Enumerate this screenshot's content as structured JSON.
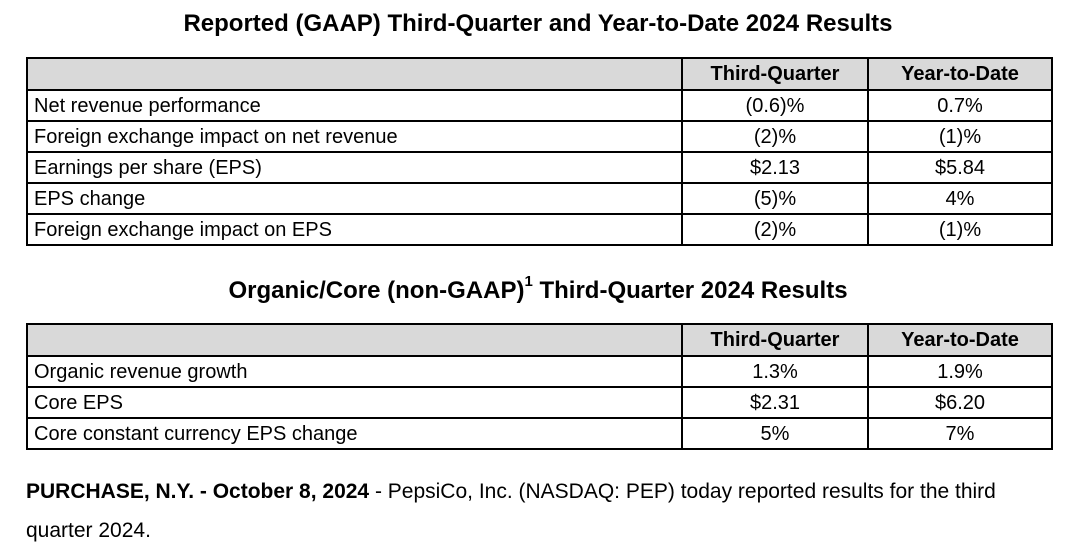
{
  "section1": {
    "title": "Reported (GAAP) Third-Quarter and Year-to-Date 2024 Results",
    "columns": [
      "",
      "Third-Quarter",
      "Year-to-Date"
    ],
    "rows": [
      [
        "Net revenue performance",
        "(0.6)%",
        "0.7%"
      ],
      [
        "Foreign exchange impact on net revenue",
        "(2)%",
        "(1)%"
      ],
      [
        "Earnings per share (EPS)",
        "$2.13",
        "$5.84"
      ],
      [
        "EPS change",
        "(5)%",
        "4%"
      ],
      [
        "Foreign exchange impact on EPS",
        "(2)%",
        "(1)%"
      ]
    ]
  },
  "section2": {
    "title_main": "Organic/Core (non-GAAP)",
    "title_sup": "1",
    "title_rest": " Third-Quarter 2024 Results",
    "columns": [
      "",
      "Third-Quarter",
      "Year-to-Date"
    ],
    "rows": [
      [
        "Organic revenue growth",
        "1.3%",
        "1.9%"
      ],
      [
        "Core EPS",
        "$2.31",
        "$6.20"
      ],
      [
        "Core constant currency EPS change",
        "5%",
        "7%"
      ]
    ]
  },
  "paragraph": {
    "dateline": "PURCHASE, N.Y. - October 8, 2024",
    "text": " - PepsiCo, Inc. (NASDAQ: PEP) today reported results for the third quarter 2024."
  }
}
